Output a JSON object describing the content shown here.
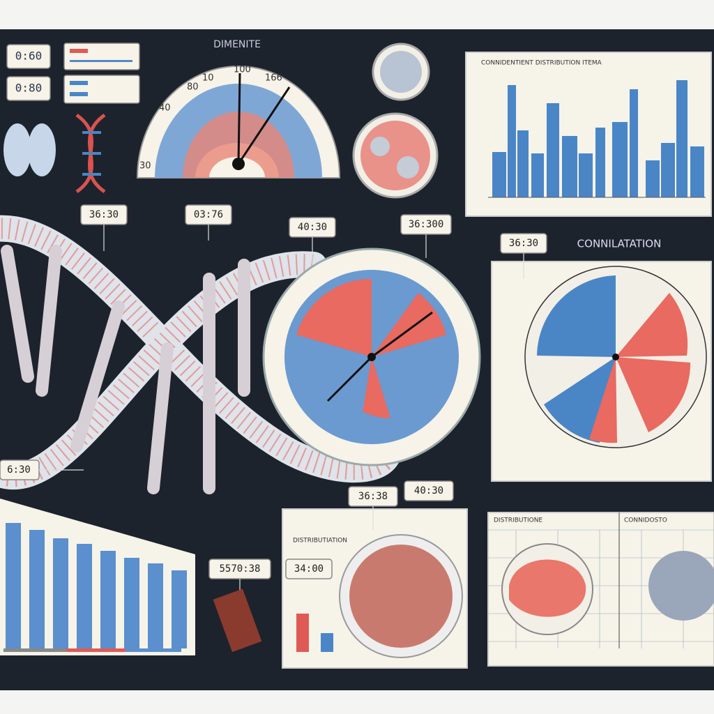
{
  "header": {
    "title": "DIMENITE"
  },
  "readouts": [
    "0:60",
    "0:80"
  ],
  "gauge_labels": [
    "80",
    "10",
    "100",
    "166",
    "40",
    "30"
  ],
  "chart_panel": {
    "title": "CONNIDENTIENT DISTRIBUTION ITEMA"
  },
  "polar_panel": {
    "title": "CONNILATATION"
  },
  "callouts": [
    "36:30",
    "03:76",
    "40:30",
    "36:300",
    "36:30",
    "6:30",
    "36:38",
    "40:30",
    "5570:38",
    "34:00"
  ],
  "bowl_panel": {
    "title": "DISTRIBUTIATION"
  },
  "grid_panel": {
    "left_title": "DISTRIBUTIONE",
    "right_title": "CONNIDOSTO"
  }
}
